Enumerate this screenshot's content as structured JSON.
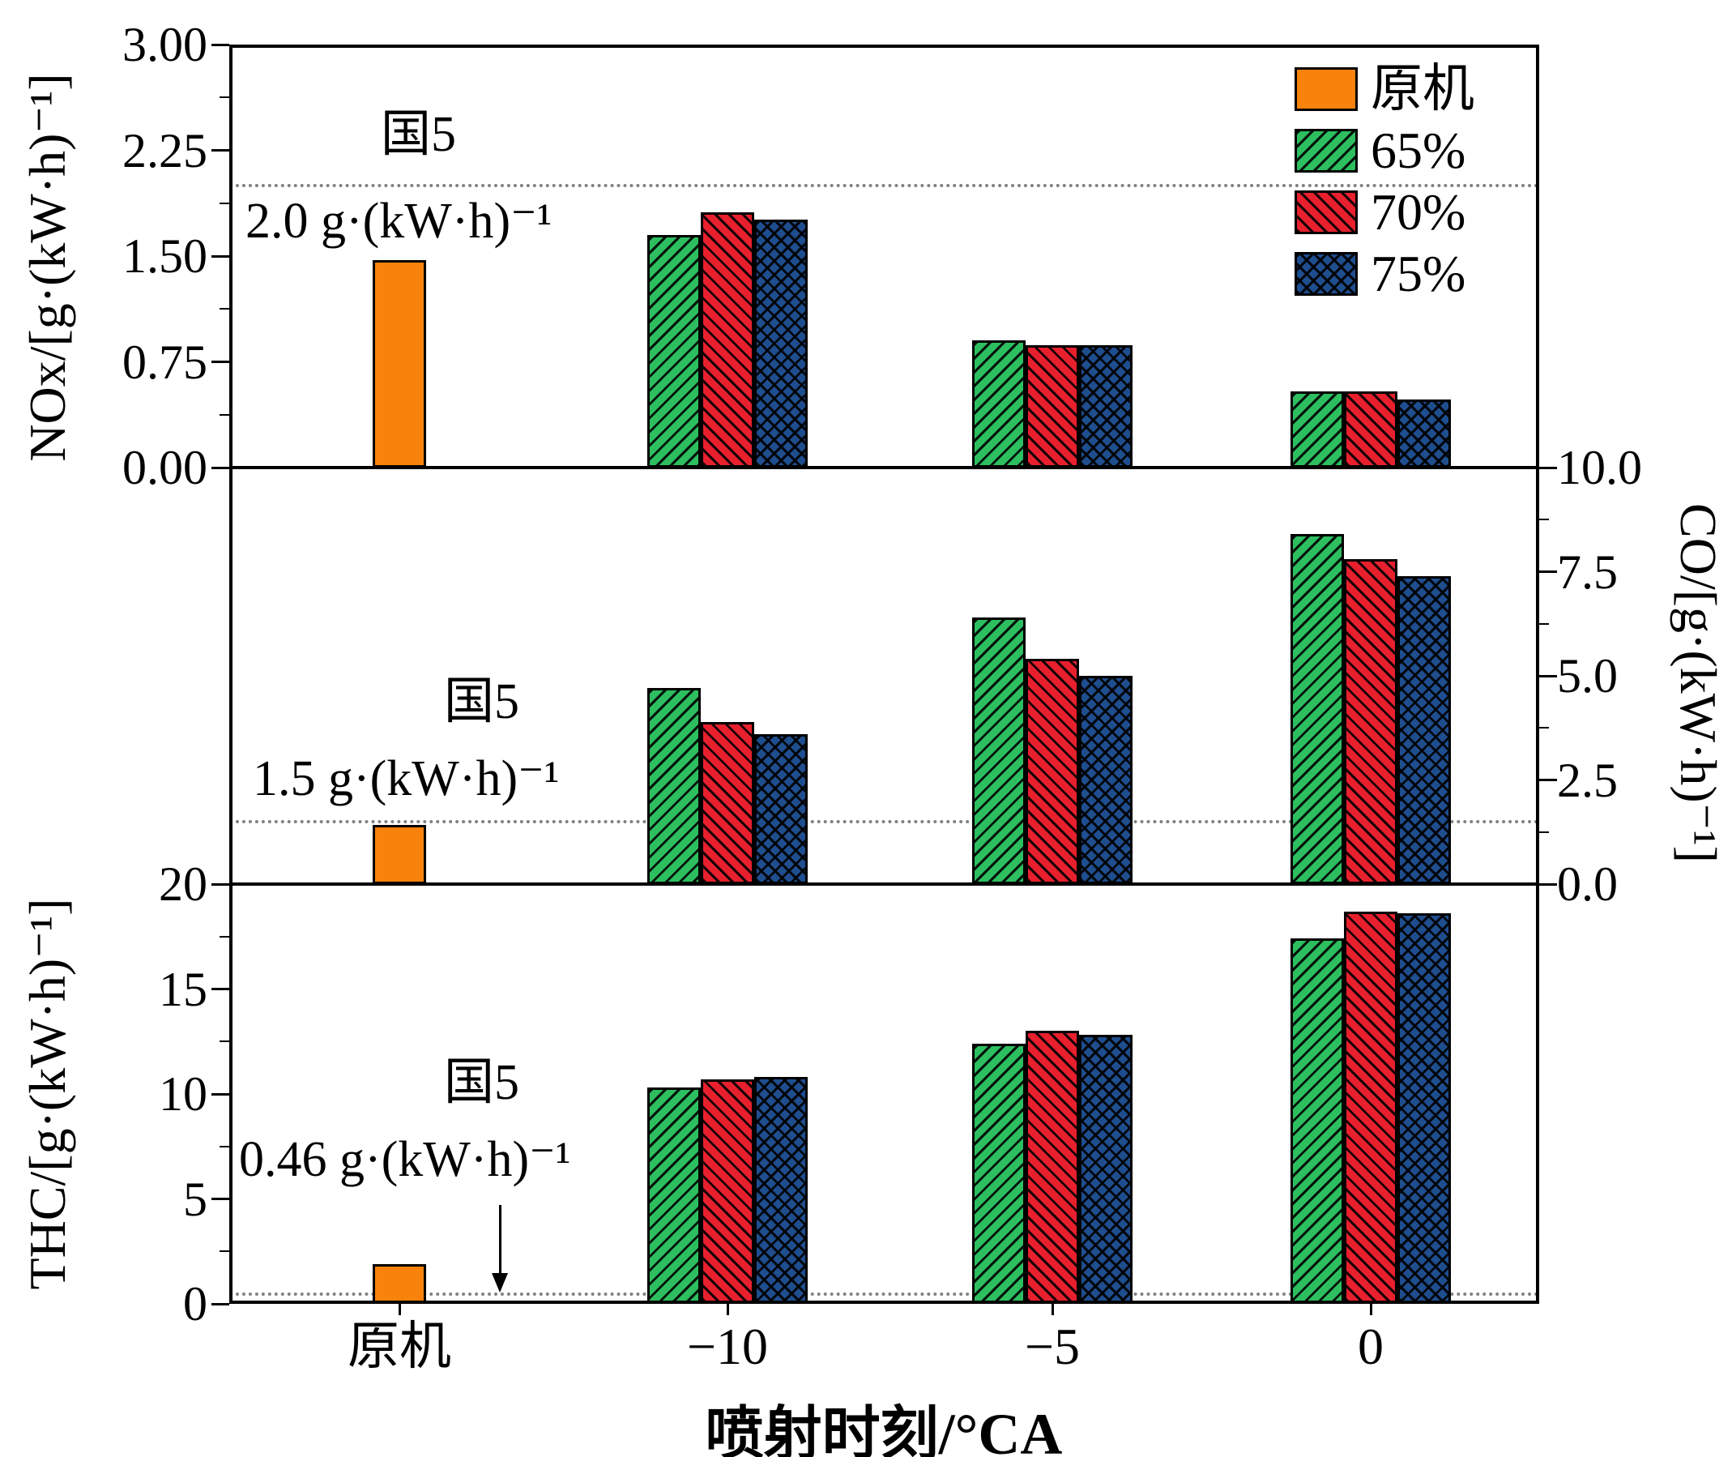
{
  "figure": {
    "background": "#ffffff",
    "x_axis_title": "喷射时刻/°CA",
    "x_tick_labels": [
      "原机",
      "−10",
      "−5",
      "0"
    ],
    "axis_color": "#000000",
    "reference_line_color": "#818181",
    "layout": {
      "grid": false,
      "legend_position": "top-right-inside"
    },
    "legend": {
      "items": [
        {
          "label": "原机",
          "color": "#F8820B",
          "pattern": "solid"
        },
        {
          "label": "65%",
          "color": "#2DBE60",
          "pattern": "fwd-hatch"
        },
        {
          "label": "70%",
          "color": "#E8202E",
          "pattern": "bwd-hatch"
        },
        {
          "label": "75%",
          "color": "#1F4E8F",
          "pattern": "cross-hatch"
        }
      ]
    }
  },
  "chart_data": [
    {
      "type": "bar",
      "panel": "NOx",
      "ylabel": "NOx/[g·(kW·h)⁻¹]",
      "ylabel_side": "left",
      "ylim": [
        0,
        3.0
      ],
      "yticks": [
        0,
        0.75,
        1.5,
        2.25,
        3
      ],
      "ytick_labels": [
        "0.00",
        "0.75",
        "1.50",
        "2.25",
        "3.00"
      ],
      "categories": [
        "原机",
        "−10",
        "−5",
        "0"
      ],
      "series": [
        {
          "name": "原机",
          "values": [
            1.47,
            null,
            null,
            null
          ]
        },
        {
          "name": "65%",
          "values": [
            null,
            1.65,
            0.9,
            0.54
          ]
        },
        {
          "name": "70%",
          "values": [
            null,
            1.81,
            0.87,
            0.54
          ]
        },
        {
          "name": "75%",
          "values": [
            null,
            1.76,
            0.87,
            0.48
          ]
        }
      ],
      "reference_line": {
        "value": 2.0,
        "label_line1": "国5",
        "label_line2": "2.0 g·(kW·h)⁻¹"
      }
    },
    {
      "type": "bar",
      "panel": "CO",
      "ylabel": "CO/[g·(kW·h)⁻¹]",
      "ylabel_side": "right",
      "ylim": [
        0,
        10.0
      ],
      "yticks": [
        0,
        2.5,
        5,
        7.5,
        10
      ],
      "ytick_labels": [
        "0.0",
        "2.5",
        "5.0",
        "7.5",
        "10.0"
      ],
      "categories": [
        "原机",
        "−10",
        "−5",
        "0"
      ],
      "series": [
        {
          "name": "原机",
          "values": [
            1.42,
            null,
            null,
            null
          ]
        },
        {
          "name": "65%",
          "values": [
            null,
            4.7,
            6.4,
            8.4
          ]
        },
        {
          "name": "70%",
          "values": [
            null,
            3.9,
            5.4,
            7.8
          ]
        },
        {
          "name": "75%",
          "values": [
            null,
            3.6,
            5.0,
            7.4
          ]
        }
      ],
      "reference_line": {
        "value": 1.5,
        "label_line1": "国5",
        "label_line2": "1.5 g·(kW·h)⁻¹"
      }
    },
    {
      "type": "bar",
      "panel": "THC",
      "ylabel": "THC/[g·(kW·h)⁻¹]",
      "ylabel_side": "left",
      "ylim": [
        0,
        20
      ],
      "yticks": [
        0,
        5,
        10,
        15,
        20
      ],
      "ytick_labels": [
        "0",
        "5",
        "10",
        "15",
        "20"
      ],
      "categories": [
        "原机",
        "−10",
        "−5",
        "0"
      ],
      "series": [
        {
          "name": "原机",
          "values": [
            1.9,
            null,
            null,
            null
          ]
        },
        {
          "name": "65%",
          "values": [
            null,
            10.3,
            12.4,
            17.4
          ]
        },
        {
          "name": "70%",
          "values": [
            null,
            10.7,
            13.0,
            18.7
          ]
        },
        {
          "name": "75%",
          "values": [
            null,
            10.8,
            12.8,
            18.6
          ]
        }
      ],
      "reference_line": {
        "value": 0.46,
        "label_line1": "国5",
        "label_line2": "0.46 g·(kW·h)⁻¹",
        "arrow": true
      }
    }
  ]
}
